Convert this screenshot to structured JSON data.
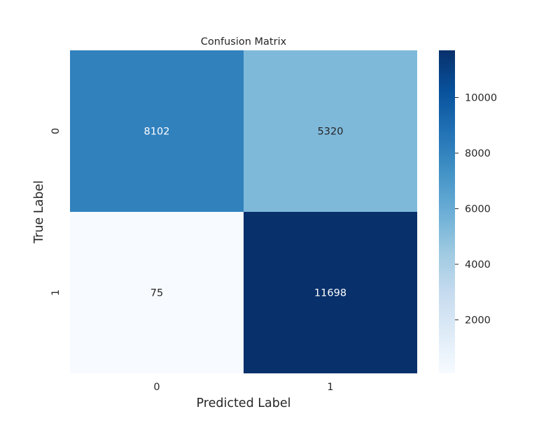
{
  "chart_data": {
    "type": "heatmap",
    "title": "Confusion Matrix",
    "xlabel": "Predicted Label",
    "ylabel": "True Label",
    "x_categories": [
      "0",
      "1"
    ],
    "y_categories": [
      "0",
      "1"
    ],
    "values": [
      [
        8102,
        5320
      ],
      [
        75,
        11698
      ]
    ],
    "annotations": [
      [
        "8102",
        "5320"
      ],
      [
        "75",
        "11698"
      ]
    ],
    "colormap": "Blues",
    "colorbar": {
      "range": [
        75,
        11698
      ],
      "ticks": [
        2000,
        4000,
        6000,
        8000,
        10000
      ],
      "tick_labels": [
        "2000",
        "4000",
        "6000",
        "8000",
        "10000"
      ]
    },
    "grid": false,
    "legend": "colorbar-right"
  }
}
